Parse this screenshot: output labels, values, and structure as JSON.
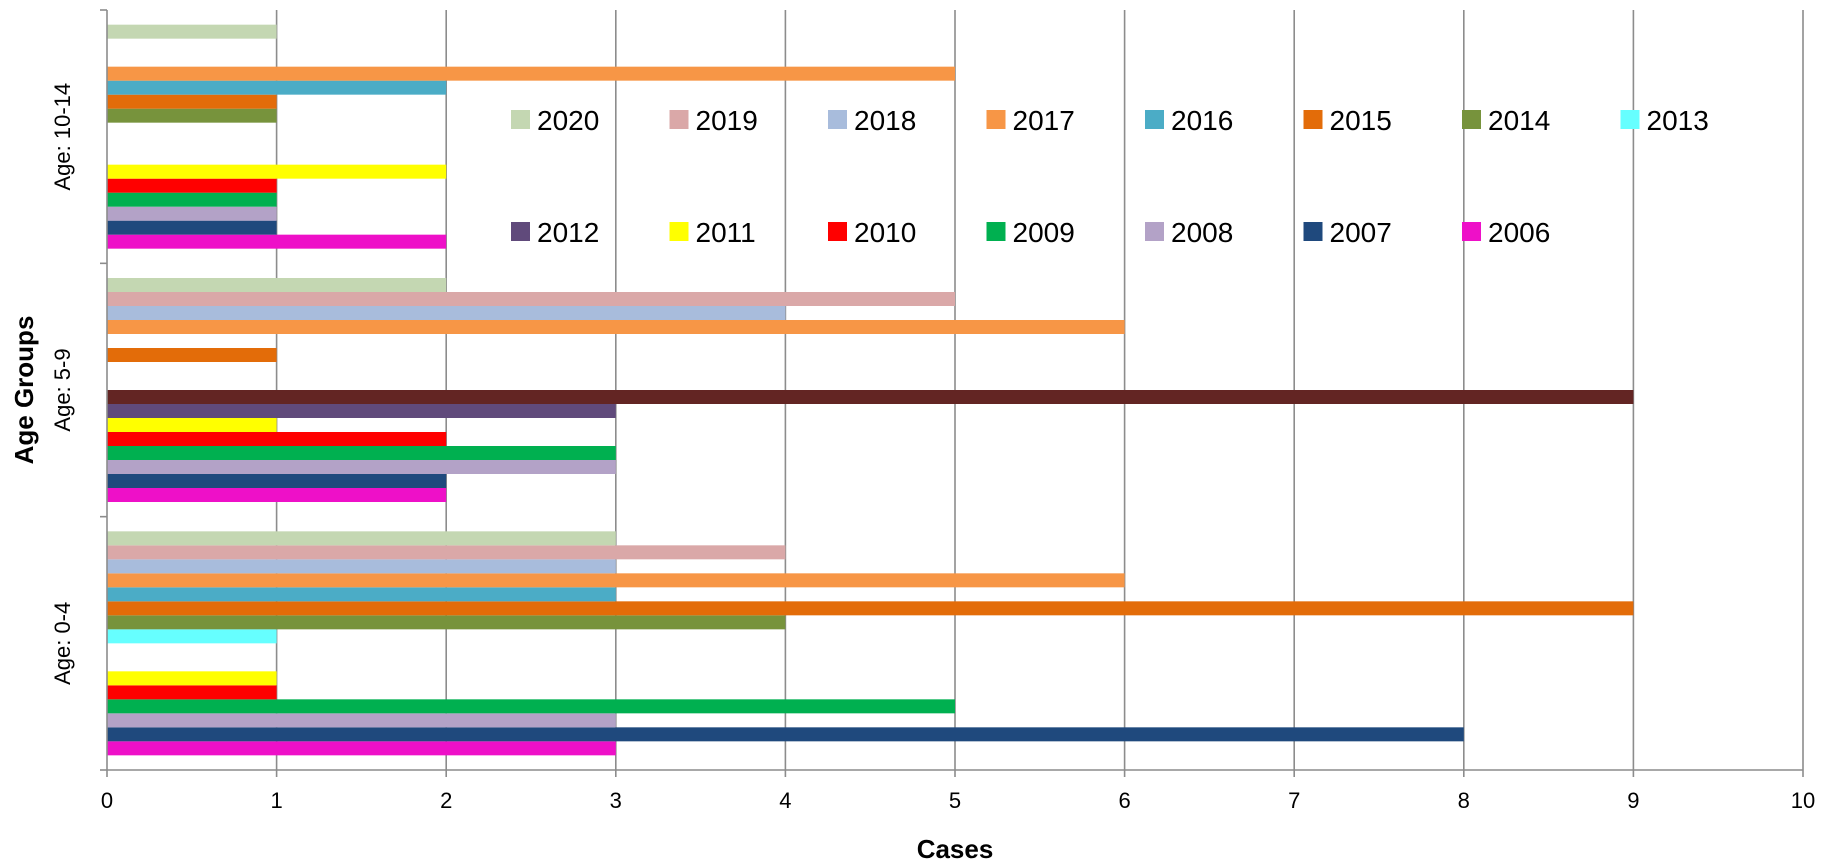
{
  "chart_data": {
    "type": "bar",
    "orientation": "horizontal",
    "title": "",
    "xlabel": "Cases",
    "ylabel": "Age Groups",
    "xlim": [
      0,
      10
    ],
    "x_ticks": [
      0,
      1,
      2,
      3,
      4,
      5,
      6,
      7,
      8,
      9,
      10
    ],
    "grid": "vertical major gridlines",
    "legend_position": "inside, upper right area",
    "categories": [
      "Age: 0-4",
      "Age: 5-9",
      "Age: 10-14"
    ],
    "series": [
      {
        "name": "2006",
        "color": "#EE10C8",
        "values": [
          3,
          2,
          2
        ]
      },
      {
        "name": "2007",
        "color": "#1F497D",
        "values": [
          8,
          2,
          1
        ]
      },
      {
        "name": "2008",
        "color": "#B3A2C7",
        "values": [
          3,
          3,
          1
        ]
      },
      {
        "name": "2009",
        "color": "#00B050",
        "values": [
          5,
          3,
          1
        ]
      },
      {
        "name": "2010",
        "color": "#FF0000",
        "values": [
          1,
          2,
          1
        ]
      },
      {
        "name": "2011",
        "color": "#FFFF00",
        "values": [
          1,
          1,
          2
        ]
      },
      {
        "name": "2012",
        "color": "#604A7B",
        "values": [
          0,
          3,
          0
        ]
      },
      {
        "name": "",
        "color": "#632523",
        "values": [
          0,
          9,
          0
        ]
      },
      {
        "name": "2013",
        "color": "#66FFFF",
        "values": [
          1,
          0,
          0
        ]
      },
      {
        "name": "2014",
        "color": "#77933C",
        "values": [
          4,
          0,
          1
        ]
      },
      {
        "name": "2015",
        "color": "#E36C09",
        "values": [
          9,
          1,
          1
        ]
      },
      {
        "name": "2016",
        "color": "#4BACC6",
        "values": [
          3,
          0,
          2
        ]
      },
      {
        "name": "2017",
        "color": "#F79646",
        "values": [
          6,
          6,
          5
        ]
      },
      {
        "name": "2018",
        "color": "#A8BCDC",
        "values": [
          3,
          4,
          0
        ]
      },
      {
        "name": "2019",
        "color": "#DAA8A8",
        "values": [
          4,
          5,
          0
        ]
      },
      {
        "name": "2020",
        "color": "#C4D7B2",
        "values": [
          3,
          2,
          1
        ]
      }
    ],
    "legend_rows": [
      [
        "2020",
        "2019",
        "2018",
        "2017",
        "2016",
        "2015",
        "2014",
        "2013"
      ],
      [
        "2012",
        "2011",
        "2010",
        "2009",
        "2008",
        "2007",
        "2006"
      ]
    ]
  }
}
